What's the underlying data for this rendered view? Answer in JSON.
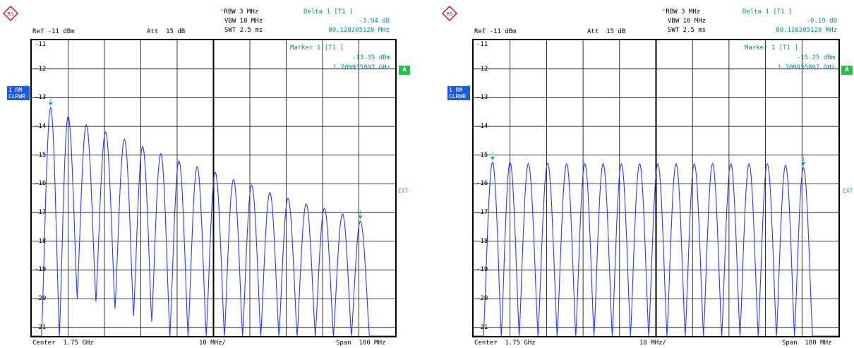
{
  "colors": {
    "trace": "#2b3be8",
    "marker": "#1aa0a0",
    "grid": "#000000",
    "badge": "#22c24a",
    "info": "#0e8a8a"
  },
  "chart_data": [
    {
      "type": "line",
      "header": {
        "rbw": "RBW 3 MHz",
        "vbw": "VBW 10 MHz",
        "swt": "SWT 2.5 ms",
        "ref": "Ref -11 dBm",
        "att": "Att  15 dB",
        "delta_title": "Delta 1 [T1 ]",
        "delta_value": "-3.94 dB",
        "delta_freq": "80.128205128 MHz",
        "marker_title": "Marker 1 [T1 ]",
        "marker_value": "-13.35 dBm",
        "marker_freq": "1.709935897 GHz"
      },
      "footer": {
        "center": "Center  1.75 GHz",
        "div": "10 MHz/",
        "span": "Span  100 MHz"
      },
      "trace_label": [
        "1 RM",
        "CLRWR"
      ],
      "badge_a": "A",
      "badge_ext": "EXT",
      "yticks": [
        "-11",
        "-12",
        "-13",
        "-14",
        "-15",
        "-16",
        "-17",
        "-18",
        "-19",
        "-20",
        "-21"
      ],
      "ylim": [
        -21.3,
        -11
      ],
      "xlim": [
        1700,
        1800
      ],
      "series": [
        {
          "peaks_x": [
            1705.2,
            1710.0,
            1715.0,
            1720.3,
            1725.5,
            1730.5,
            1735.5,
            1740.5,
            1745.5,
            1750.5,
            1755.5,
            1760.5,
            1765.5,
            1770.5,
            1775.5,
            1780.5,
            1785.5,
            1790.4
          ],
          "peaks_y": [
            -13.35,
            -13.65,
            -13.95,
            -14.2,
            -14.45,
            -14.7,
            -14.95,
            -15.2,
            -15.4,
            -15.6,
            -15.85,
            -16.05,
            -16.3,
            -16.5,
            -16.7,
            -16.85,
            -17.05,
            -17.3
          ],
          "valleys_y": [
            -21.3,
            -20.0,
            -20.1,
            -20.35,
            -20.6,
            -20.8,
            -21.3,
            -21.3,
            -21.3,
            -21.3,
            -21.3,
            -21.3,
            -21.3,
            -21.3,
            -21.3,
            -21.3,
            -21.3
          ]
        }
      ],
      "markers": [
        {
          "x": 1705.2,
          "y": -13.35,
          "label": "1"
        },
        {
          "x": 1790.4,
          "y": -17.3,
          "label": "1"
        }
      ]
    },
    {
      "type": "line",
      "header": {
        "rbw": "RBW 3 MHz",
        "vbw": "VBW 10 MHz",
        "swt": "SWT 2.5 ms",
        "ref": "Ref -11 dBm",
        "att": "Att  15 dB",
        "delta_title": "Delta 1 [T1 ]",
        "delta_value": "-0.19 dB",
        "delta_freq": "80.128205128 MHz",
        "marker_title": "Marker 1 [T1 ]",
        "marker_value": "-15.25 dBm",
        "marker_freq": "1.709935897 GHz"
      },
      "footer": {
        "center": "Center  1.75 GHz",
        "div": "10 MHz/",
        "span": "Span  100 MHz"
      },
      "trace_label": [
        "1 RM",
        "CLRWR"
      ],
      "badge_a": "A",
      "badge_ext": "EXT",
      "yticks": [
        "-11",
        "-12",
        "-13",
        "-14",
        "-15",
        "-16",
        "-17",
        "-18",
        "-19",
        "-20",
        "-21"
      ],
      "ylim": [
        -21.3,
        -11
      ],
      "xlim": [
        1700,
        1800
      ],
      "series": [
        {
          "peaks_x": [
            1705.2,
            1710.0,
            1715.0,
            1720.3,
            1725.5,
            1730.5,
            1735.5,
            1740.5,
            1745.5,
            1750.5,
            1755.5,
            1760.5,
            1765.5,
            1770.5,
            1775.5,
            1780.5,
            1785.5,
            1790.4
          ],
          "peaks_y": [
            -15.25,
            -15.25,
            -15.3,
            -15.28,
            -15.3,
            -15.3,
            -15.3,
            -15.3,
            -15.3,
            -15.3,
            -15.3,
            -15.3,
            -15.3,
            -15.3,
            -15.3,
            -15.3,
            -15.35,
            -15.44
          ],
          "valleys_y": [
            -21.3,
            -21.3,
            -21.3,
            -21.3,
            -21.3,
            -21.3,
            -21.3,
            -21.3,
            -21.3,
            -21.3,
            -21.3,
            -21.3,
            -21.3,
            -21.3,
            -21.3,
            -21.3,
            -21.3
          ]
        }
      ],
      "markers": [
        {
          "x": 1705.2,
          "y": -15.25,
          "label": "1"
        },
        {
          "x": 1790.4,
          "y": -15.44,
          "label": "1"
        }
      ]
    }
  ]
}
